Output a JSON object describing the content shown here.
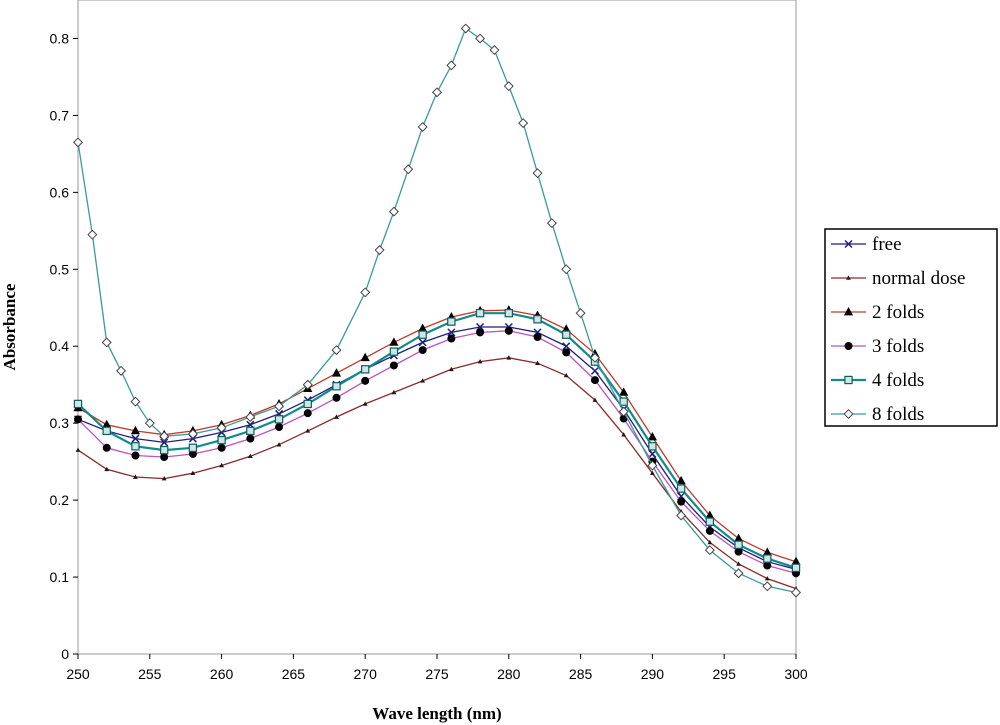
{
  "chart_data": {
    "type": "line",
    "title": "",
    "xlabel": "Wave length (nm)",
    "ylabel": "Absorbance",
    "xlim": [
      250,
      300
    ],
    "ylim": [
      0,
      0.85
    ],
    "x_ticks": [
      250,
      255,
      260,
      265,
      270,
      275,
      280,
      285,
      290,
      295,
      300
    ],
    "y_ticks": [
      0,
      0.1,
      0.2,
      0.3,
      0.4,
      0.5,
      0.6,
      0.7,
      0.8
    ],
    "y_tick_labels": [
      "0",
      "0.1",
      "0.2",
      "0.3",
      "0.4",
      "0.5",
      "0.6",
      "0.7",
      "0.8"
    ],
    "grid": false,
    "legend_position": "right",
    "series": [
      {
        "name": "free",
        "color": "#1f1f7a",
        "marker": "x",
        "x": [
          250,
          252,
          254,
          256,
          258,
          260,
          262,
          264,
          266,
          268,
          270,
          272,
          274,
          276,
          278,
          280,
          282,
          284,
          286,
          288,
          290,
          292,
          294,
          296,
          298,
          300
        ],
        "y": [
          0.305,
          0.29,
          0.28,
          0.275,
          0.28,
          0.288,
          0.298,
          0.312,
          0.33,
          0.35,
          0.37,
          0.388,
          0.405,
          0.418,
          0.425,
          0.425,
          0.418,
          0.4,
          0.368,
          0.318,
          0.26,
          0.205,
          0.165,
          0.138,
          0.12,
          0.11
        ]
      },
      {
        "name": "normal dose",
        "color": "#8b2a2a",
        "marker": "small-triangle",
        "x": [
          250,
          252,
          254,
          256,
          258,
          260,
          262,
          264,
          266,
          268,
          270,
          272,
          274,
          276,
          278,
          280,
          282,
          284,
          286,
          288,
          290,
          292,
          294,
          296,
          298,
          300
        ],
        "y": [
          0.265,
          0.24,
          0.23,
          0.228,
          0.235,
          0.245,
          0.257,
          0.272,
          0.29,
          0.308,
          0.325,
          0.34,
          0.355,
          0.37,
          0.38,
          0.385,
          0.378,
          0.362,
          0.33,
          0.285,
          0.235,
          0.185,
          0.145,
          0.117,
          0.098,
          0.085
        ]
      },
      {
        "name": "2 folds",
        "color": "#c0392b",
        "marker": "triangle",
        "x": [
          250,
          252,
          254,
          256,
          258,
          260,
          262,
          264,
          266,
          268,
          270,
          272,
          274,
          276,
          278,
          280,
          282,
          284,
          286,
          288,
          290,
          292,
          294,
          296,
          298,
          300
        ],
        "y": [
          0.32,
          0.298,
          0.29,
          0.285,
          0.29,
          0.298,
          0.31,
          0.325,
          0.345,
          0.365,
          0.385,
          0.405,
          0.423,
          0.438,
          0.446,
          0.447,
          0.44,
          0.422,
          0.39,
          0.34,
          0.282,
          0.225,
          0.18,
          0.15,
          0.132,
          0.12
        ]
      },
      {
        "name": "3 folds",
        "color": "#c050c0",
        "marker": "circle",
        "x": [
          250,
          252,
          254,
          256,
          258,
          260,
          262,
          264,
          266,
          268,
          270,
          272,
          274,
          276,
          278,
          280,
          282,
          284,
          286,
          288,
          290,
          292,
          294,
          296,
          298,
          300
        ],
        "y": [
          0.305,
          0.268,
          0.258,
          0.256,
          0.26,
          0.268,
          0.28,
          0.295,
          0.313,
          0.333,
          0.355,
          0.375,
          0.395,
          0.41,
          0.418,
          0.42,
          0.412,
          0.392,
          0.356,
          0.306,
          0.25,
          0.198,
          0.16,
          0.133,
          0.115,
          0.105
        ]
      },
      {
        "name": "4 folds",
        "color": "#138a8a",
        "marker": "square",
        "x": [
          250,
          252,
          254,
          256,
          258,
          260,
          262,
          264,
          266,
          268,
          270,
          272,
          274,
          276,
          278,
          280,
          282,
          284,
          286,
          288,
          290,
          292,
          294,
          296,
          298,
          300
        ],
        "y": [
          0.325,
          0.29,
          0.27,
          0.265,
          0.268,
          0.278,
          0.29,
          0.305,
          0.325,
          0.348,
          0.37,
          0.393,
          0.415,
          0.432,
          0.443,
          0.443,
          0.435,
          0.415,
          0.38,
          0.328,
          0.27,
          0.215,
          0.172,
          0.142,
          0.124,
          0.112
        ]
      },
      {
        "name": "8 folds",
        "color": "#3a9a9a",
        "marker": "diamond",
        "x": [
          250,
          251,
          252,
          253,
          254,
          255,
          256,
          258,
          260,
          262,
          264,
          266,
          268,
          270,
          271,
          272,
          273,
          274,
          275,
          276,
          277,
          278,
          279,
          280,
          281,
          282,
          283,
          284,
          285,
          286,
          288,
          290,
          292,
          294,
          296,
          298,
          300
        ],
        "y": [
          0.665,
          0.545,
          0.405,
          0.368,
          0.328,
          0.3,
          0.283,
          0.286,
          0.294,
          0.308,
          0.322,
          0.35,
          0.395,
          0.47,
          0.525,
          0.575,
          0.63,
          0.685,
          0.73,
          0.765,
          0.813,
          0.8,
          0.785,
          0.738,
          0.69,
          0.625,
          0.56,
          0.5,
          0.443,
          0.385,
          0.315,
          0.245,
          0.18,
          0.135,
          0.105,
          0.088,
          0.08
        ]
      }
    ]
  }
}
